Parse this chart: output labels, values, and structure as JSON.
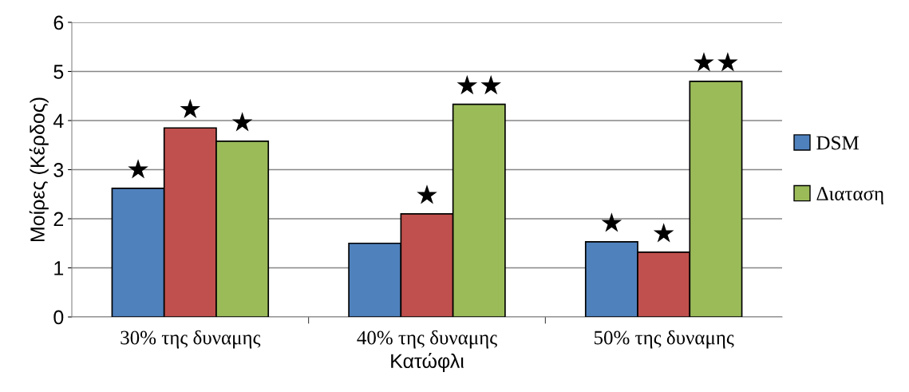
{
  "chart_data": {
    "type": "bar",
    "xlabel": "Κατώφλι",
    "ylabel": "Μοίρες (Κέρδος)",
    "categories": [
      "30% της δυναμης",
      "40% της δυναμης",
      "50% της δυναμης"
    ],
    "series": [
      {
        "name": "DSM",
        "color": "#4f81bd",
        "values": [
          2.62,
          1.5,
          1.53
        ],
        "value_labels": [
          "★",
          null,
          "★"
        ]
      },
      {
        "color": "#c0504d",
        "values": [
          3.85,
          2.1,
          1.32
        ],
        "value_labels": [
          "★",
          "★",
          "★"
        ]
      },
      {
        "name": "Διαταση",
        "color": "#9bbb59",
        "values": [
          3.58,
          4.33,
          4.8
        ],
        "value_labels": [
          "★",
          "★★",
          "★★"
        ]
      }
    ],
    "ylim": [
      0,
      6
    ],
    "yticks": [
      0,
      1,
      2,
      3,
      4,
      5,
      6
    ],
    "grid": "y",
    "legend": "right"
  }
}
